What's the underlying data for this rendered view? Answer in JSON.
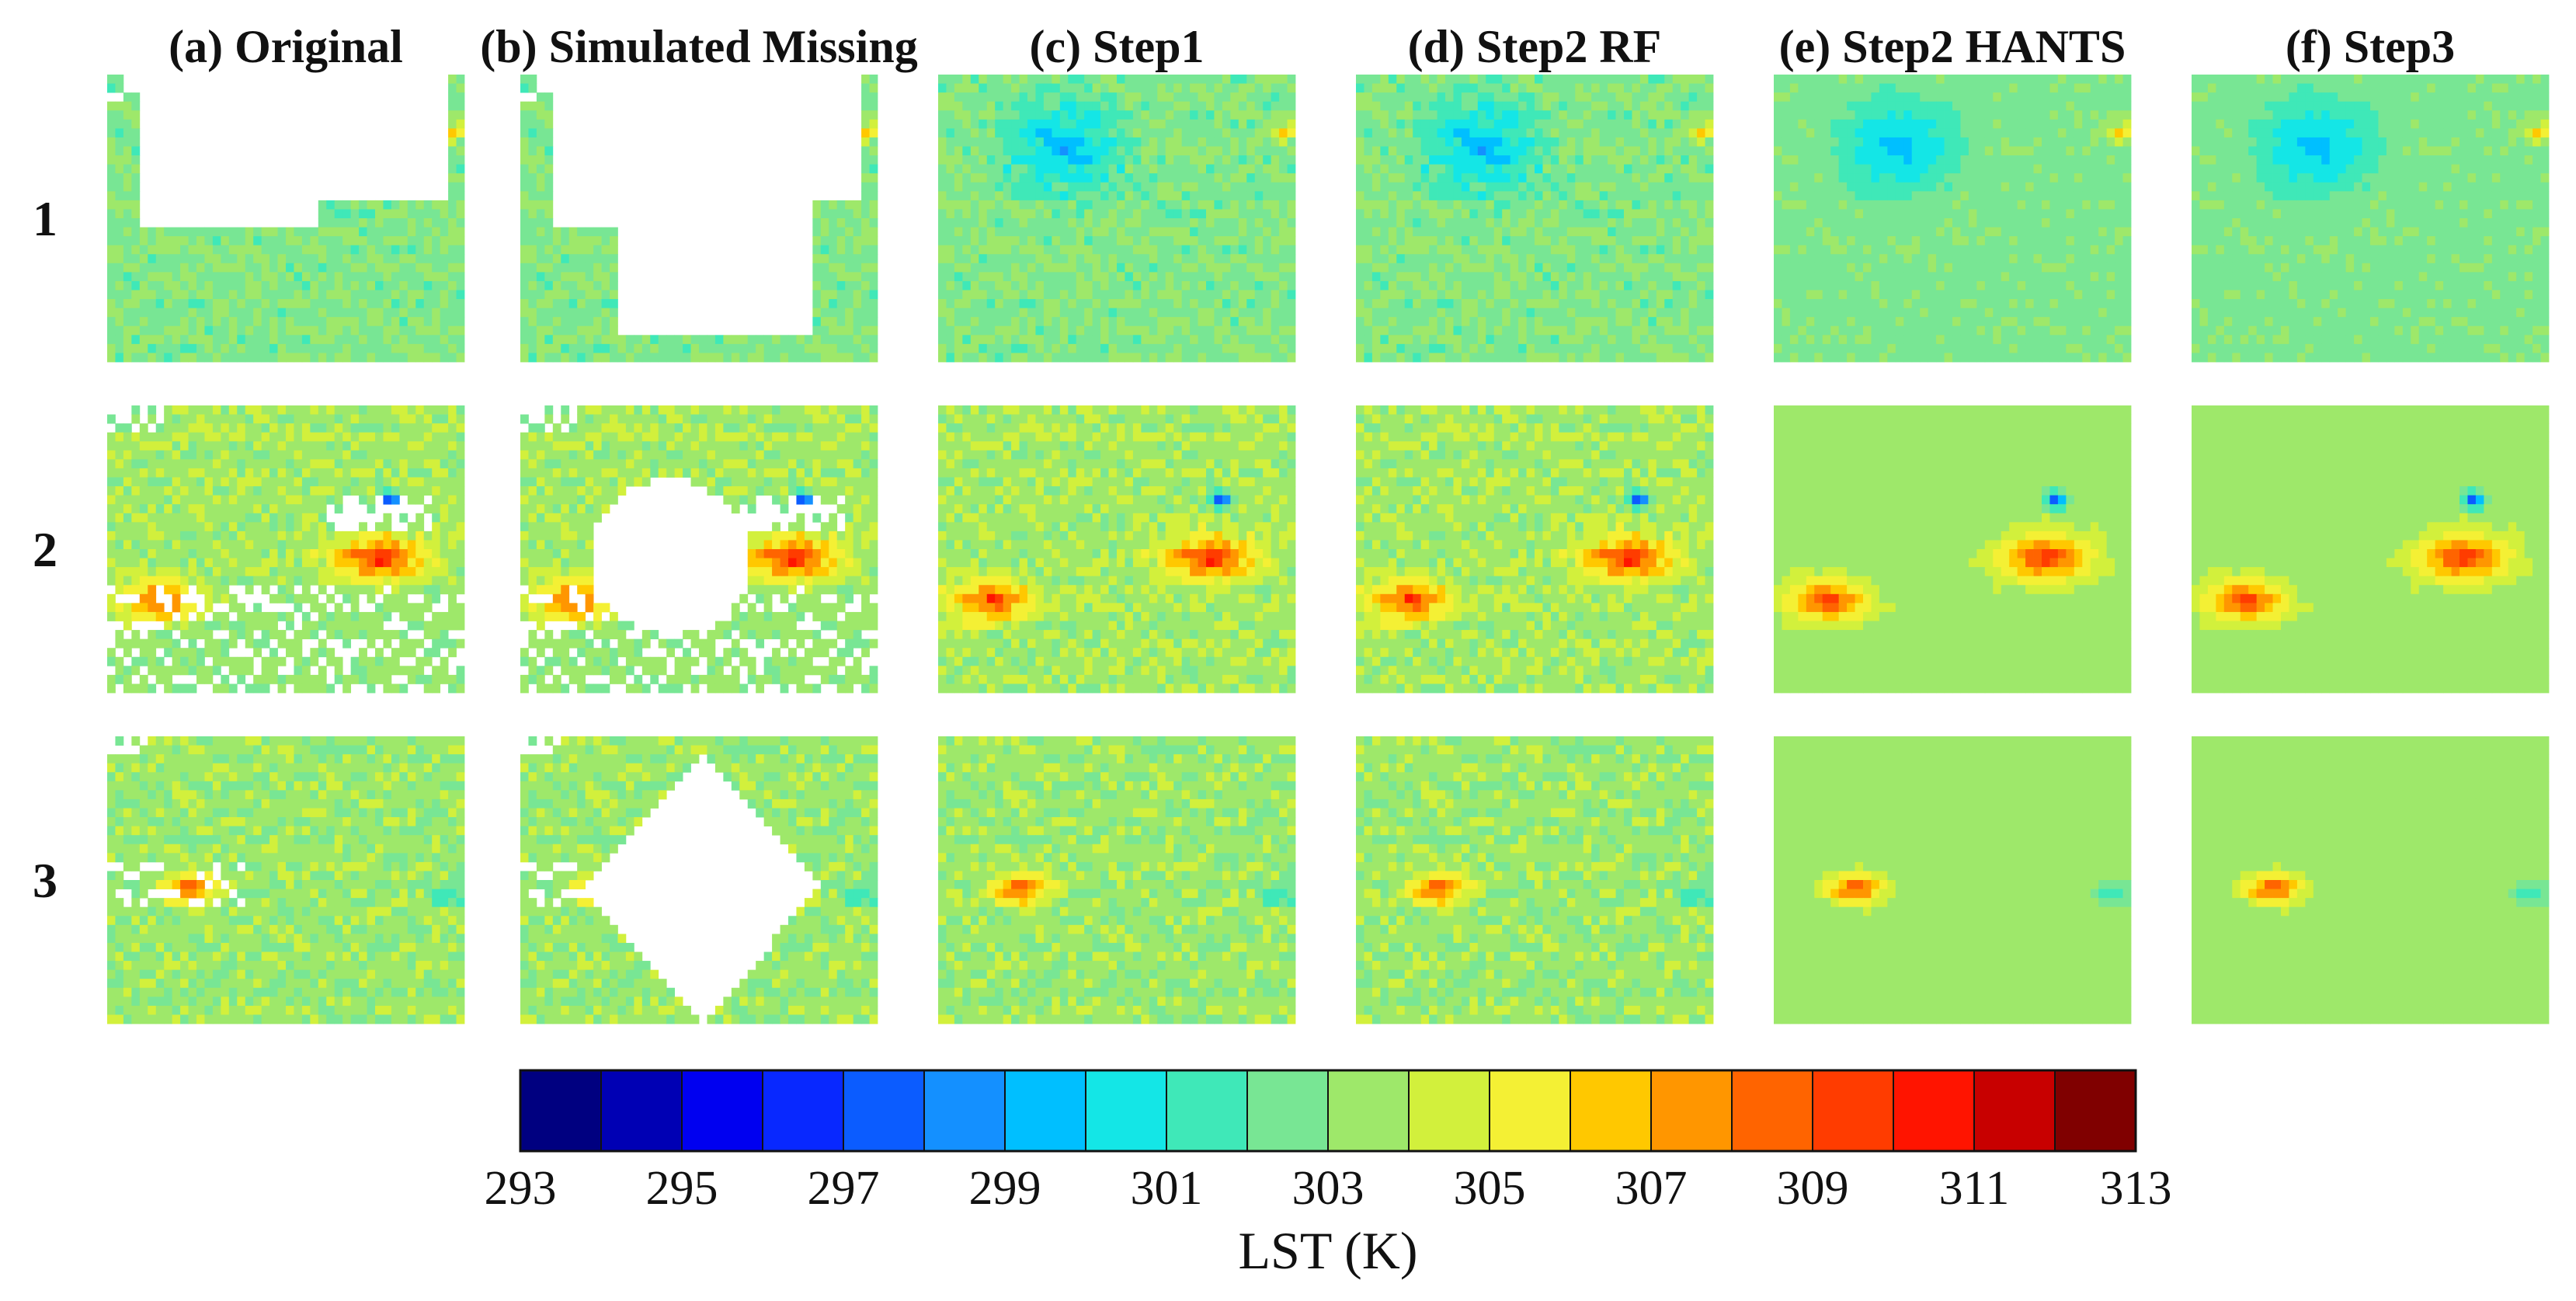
{
  "chart_data": {
    "type": "heatmap",
    "title": "",
    "columns": [
      "(a) Original",
      "(b) Simulated Missing",
      "(c) Step1",
      "(d) Step2 RF",
      "(e) Step2 HANTS",
      "(f) Step3"
    ],
    "rows": [
      "1",
      "2",
      "3"
    ],
    "colorbar": {
      "label": "LST (K)",
      "min": 293,
      "max": 313,
      "step": 1,
      "ticks": [
        "293",
        "295",
        "297",
        "299",
        "301",
        "303",
        "305",
        "307",
        "309",
        "311",
        "313"
      ],
      "colors": [
        "#000080",
        "#0000b4",
        "#0000f0",
        "#0828ff",
        "#0b5cff",
        "#1490ff",
        "#00bfff",
        "#14e6e6",
        "#3fe8b8",
        "#78e694",
        "#9ee86a",
        "#d2f03c",
        "#f4f034",
        "#ffc800",
        "#ff9600",
        "#ff6400",
        "#ff3c00",
        "#ff1400",
        "#c80000",
        "#800000"
      ]
    },
    "panels": [
      {
        "row": "1",
        "description": "Mostly uniform surface temperature around 302-304 K",
        "base_lst": 302.8,
        "hot_spots": [
          {
            "cx": 0.97,
            "cy": 0.2,
            "radius": 0.08,
            "peak_lst": 307
          }
        ],
        "cold_spots": [
          {
            "cx": 0.35,
            "cy": 0.25,
            "radius": 0.25,
            "lst": 299.4
          }
        ]
      },
      {
        "row": "2",
        "description": "Two hot regions: an elongated band on the right and a compact area on the left",
        "base_lst": 303.6,
        "hot_spots": [
          {
            "cx": 0.76,
            "cy": 0.53,
            "radius": 0.2,
            "peak_lst": 310.5
          },
          {
            "cx": 0.15,
            "cy": 0.68,
            "radius": 0.17,
            "peak_lst": 310.3
          }
        ],
        "cold_spots": [
          {
            "cx": 0.79,
            "cy": 0.33,
            "radius": 0.05,
            "lst": 297.4
          }
        ]
      },
      {
        "row": "3",
        "description": "Single hot spot on the left with a slightly cooler interior region",
        "base_lst": 303.4,
        "hot_spots": [
          {
            "cx": 0.23,
            "cy": 0.53,
            "radius": 0.13,
            "peak_lst": 310.2
          }
        ],
        "cold_spots": [
          {
            "cx": 0.95,
            "cy": 0.55,
            "radius": 0.07,
            "lst": 301.4
          }
        ]
      }
    ],
    "missing_values": "white cells indicate missing data"
  }
}
